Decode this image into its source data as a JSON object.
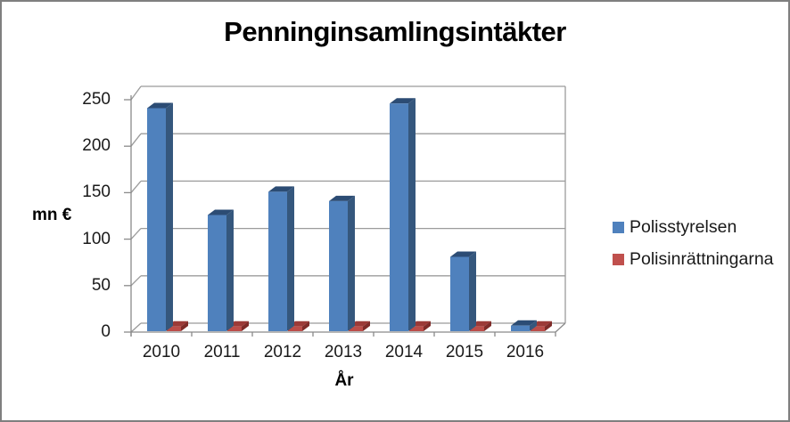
{
  "chart_data": {
    "type": "bar",
    "style": "3d-clustered-column",
    "title": "Penninginsamlingsintäkter",
    "xlabel": "År",
    "ylabel": "mn €",
    "categories": [
      "2010",
      "2011",
      "2012",
      "2013",
      "2014",
      "2015",
      "2016"
    ],
    "series": [
      {
        "name": "Polisstyrelsen",
        "color": "#4F81BD",
        "values": [
          240,
          125,
          150,
          140,
          245,
          80,
          6
        ]
      },
      {
        "name": "Polisinrättningarna",
        "color": "#C0504D",
        "values": [
          5,
          5,
          5,
          5,
          5,
          5,
          5
        ]
      }
    ],
    "ylim": [
      0,
      250
    ],
    "yticks": [
      0,
      50,
      100,
      150,
      200,
      250
    ],
    "grid": true,
    "legend_position": "right"
  },
  "palette": {
    "series_shades": [
      {
        "front": "#4F81BD",
        "side": "#35577D",
        "top": "#2C4C74"
      },
      {
        "front": "#BC4D49",
        "side": "#7E2B28",
        "top": "#9C3A37"
      }
    ],
    "gridline": "#9b9b9b",
    "axis": "#8a8a8a",
    "frame_border": "#7f7f7f",
    "text": "#1a1a1a"
  }
}
